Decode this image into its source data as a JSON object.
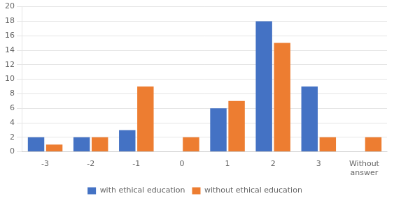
{
  "chart_data": {
    "type": "bar",
    "categories": [
      "-3",
      "-2",
      "-1",
      "0",
      "1",
      "2",
      "3",
      "Without\nanswer"
    ],
    "series": [
      {
        "name": "with ethical education",
        "color": "#4472C4",
        "values": [
          2,
          2,
          3,
          0,
          6,
          18,
          9,
          0
        ]
      },
      {
        "name": "without ethical education",
        "color": "#ED7D31",
        "values": [
          1,
          2,
          9,
          2,
          7,
          15,
          2,
          2
        ]
      }
    ],
    "ylim": [
      0,
      20
    ],
    "yticks": [
      0,
      2,
      4,
      6,
      8,
      10,
      12,
      14,
      16,
      18,
      20
    ],
    "grid": true,
    "legend": "bottom"
  }
}
